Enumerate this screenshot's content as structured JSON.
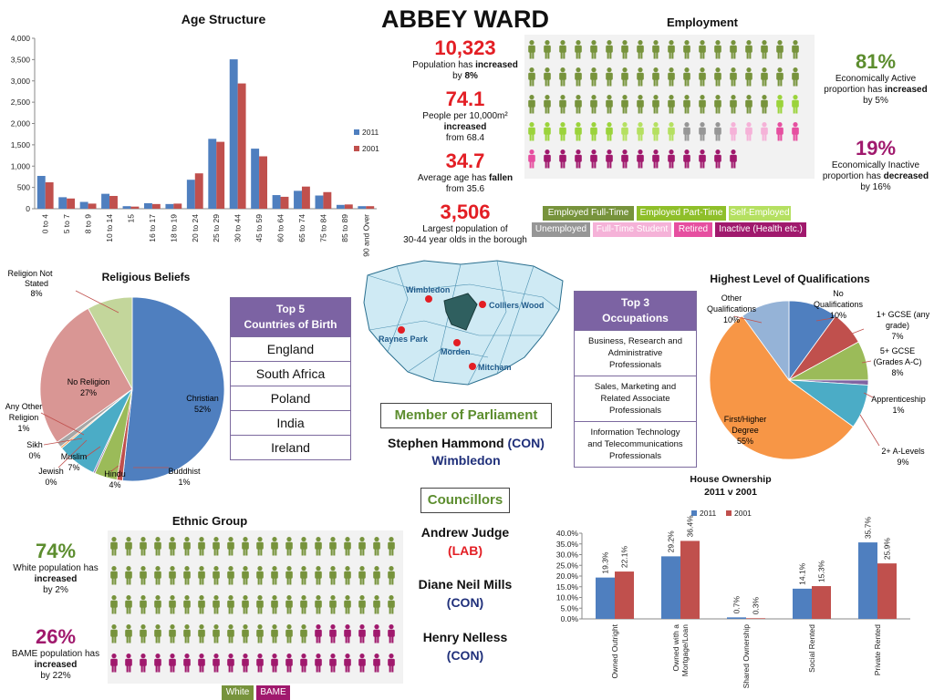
{
  "page": {
    "title": "ABBEY WARD"
  },
  "colors": {
    "blue_2011": "#4f7fbf",
    "red_2001": "#c0504d",
    "green_dark": "#77933c",
    "green_light": "#9bd33b",
    "grey": "#969696",
    "pink_light": "#f5b2d8",
    "pink": "#e64fa0",
    "purple": "#a0196d",
    "red_accent": "#e31e24",
    "table_purple": "#7c63a3"
  },
  "stats": [
    {
      "value": "10,323",
      "line1_pre": "Population has ",
      "line1_bold": "increased",
      "line2_pre": "by ",
      "line2_bold": "8%"
    },
    {
      "value": "74.1",
      "line1": "People per 10,000m²",
      "line2_bold": "increased",
      "line3": "from 68.4"
    },
    {
      "value": "34.7",
      "line1_pre": "Average age has ",
      "line1_bold": "fallen",
      "line2": "from 35.6"
    },
    {
      "value": "3,506",
      "line1": "Largest population of",
      "line2": "30-44 year olds in the borough"
    }
  ],
  "age_chart": {
    "title": "Age Structure",
    "categories": [
      "0 to 4",
      "5 to 7",
      "8 to 9",
      "10 to 14",
      "15",
      "16 to 17",
      "18 to 19",
      "20 to 24",
      "25 to 29",
      "30 to 44",
      "45 to 59",
      "60 to 64",
      "65 to 74",
      "75 to 84",
      "85 to 89",
      "90 and Over"
    ],
    "yticks": [
      "0",
      "500",
      "1,000",
      "1,500",
      "2,000",
      "2,500",
      "3,000",
      "3,500",
      "4,000"
    ],
    "legend": [
      "2011",
      "2001"
    ]
  },
  "chart_data": [
    {
      "type": "bar",
      "title": "Age Structure",
      "categories": [
        "0 to 4",
        "5 to 7",
        "8 to 9",
        "10 to 14",
        "15",
        "16 to 17",
        "18 to 19",
        "20 to 24",
        "25 to 29",
        "30 to 44",
        "45 to 59",
        "60 to 64",
        "65 to 74",
        "75 to 84",
        "85 to 89",
        "90 and Over"
      ],
      "series": [
        {
          "name": "2011",
          "values": [
            770,
            270,
            160,
            350,
            60,
            130,
            110,
            680,
            1640,
            3506,
            1410,
            320,
            420,
            310,
            90,
            60
          ]
        },
        {
          "name": "2001",
          "values": [
            620,
            240,
            120,
            300,
            50,
            110,
            120,
            830,
            1570,
            2940,
            1230,
            280,
            520,
            390,
            100,
            60
          ]
        }
      ],
      "ylim": [
        0,
        4000
      ],
      "legend_position": "right"
    },
    {
      "type": "pie",
      "title": "Religious Beliefs",
      "slices": [
        {
          "label": "Christian",
          "value": 52,
          "pct": "52%"
        },
        {
          "label": "Buddhist",
          "value": 1,
          "pct": "1%"
        },
        {
          "label": "Hindu",
          "value": 4,
          "pct": "4%"
        },
        {
          "label": "Jewish",
          "value": 0.3,
          "pct": "0%"
        },
        {
          "label": "Muslim",
          "value": 7,
          "pct": "7%"
        },
        {
          "label": "Sikh",
          "value": 0.3,
          "pct": "0%"
        },
        {
          "label": "Any Other Religion",
          "value": 1,
          "pct": "1%"
        },
        {
          "label": "No Religion",
          "value": 27,
          "pct": "27%"
        },
        {
          "label": "Religion Not Stated",
          "value": 8,
          "pct": "8%"
        }
      ]
    },
    {
      "type": "pie",
      "title": "Highest Level of Qualifications",
      "slices": [
        {
          "label": "No Qualifications",
          "value": 10,
          "pct": "10%"
        },
        {
          "label": "1+ GCSE (any grade)",
          "value": 7,
          "pct": "7%"
        },
        {
          "label": "5+ GCSE (Grades A-C)",
          "value": 8,
          "pct": "8%"
        },
        {
          "label": "Apprenticeship",
          "value": 1,
          "pct": "1%"
        },
        {
          "label": "2+ A-Levels",
          "value": 9,
          "pct": "9%"
        },
        {
          "label": "First/Higher Degree",
          "value": 55,
          "pct": "55%"
        },
        {
          "label": "Other Qualifications",
          "value": 10,
          "pct": "10%"
        }
      ]
    },
    {
      "type": "bar",
      "title": "House Ownership 2011 v 2001",
      "categories": [
        "Owned Outright",
        "Owned with a Mortgage/Loan",
        "Shared Ownership",
        "Social Rented",
        "Private Rented"
      ],
      "series": [
        {
          "name": "2011",
          "values": [
            19.3,
            29.2,
            0.7,
            14.1,
            35.7
          ],
          "labels": [
            "19.3%",
            "29.2%",
            "0.7%",
            "14.1%",
            "35.7%"
          ]
        },
        {
          "name": "2001",
          "values": [
            22.1,
            36.4,
            0.3,
            15.3,
            25.9
          ],
          "labels": [
            "22.1%",
            "36.4%",
            "0.3%",
            "15.3%",
            "25.9%"
          ]
        }
      ],
      "ylim": [
        0,
        40
      ],
      "legend_position": "top"
    }
  ],
  "religion": {
    "title": "Religious Beliefs",
    "labels": {
      "not_stated_1": "Religion Not",
      "not_stated_2": "Stated",
      "not_stated_pct": "8%",
      "christian": "Christian",
      "christian_pct": "52%",
      "no_religion": "No Religion",
      "no_religion_pct": "27%",
      "any_other_1": "Any Other",
      "any_other_2": "Religion",
      "any_other_pct": "1%",
      "sikh": "Sikh",
      "sikh_pct": "0%",
      "muslim": "Muslim",
      "muslim_pct": "7%",
      "jewish": "Jewish",
      "jewish_pct": "0%",
      "hindu": "Hindu",
      "hindu_pct": "4%",
      "buddhist": "Buddhist",
      "buddhist_pct": "1%"
    }
  },
  "countries": {
    "title_1": "Top 5",
    "title_2": "Countries of Birth",
    "items": [
      "England",
      "South Africa",
      "Poland",
      "India",
      "Ireland"
    ]
  },
  "map": {
    "labels": [
      "Wimbledon",
      "Colliers Wood",
      "Raynes Park",
      "Morden",
      "Mitcham"
    ]
  },
  "mp": {
    "heading": "Member of Parliament",
    "name": "Stephen Hammond",
    "party": "(CON)",
    "seat": "Wimbledon"
  },
  "councillors": {
    "heading": "Councillors",
    "items": [
      {
        "name": "Andrew Judge",
        "party": "(LAB)"
      },
      {
        "name": "Diane Neil Mills",
        "party": "(CON)"
      },
      {
        "name": "Henry Nelless",
        "party": "(CON)"
      }
    ]
  },
  "occupations": {
    "title_1": "Top 3",
    "title_2": "Occupations",
    "items": [
      [
        "Business, Research and",
        "Administrative",
        "Professionals"
      ],
      [
        "Sales, Marketing and",
        "Related Associate",
        "Professionals"
      ],
      [
        "Information Technology",
        "and Telecommunications",
        "Professionals"
      ]
    ]
  },
  "employment": {
    "title": "Employment",
    "active_pct": "81%",
    "active_1": "Economically Active",
    "active_2_pre": "proportion has ",
    "active_2_bold": "increased",
    "active_3": "by 5%",
    "inactive_pct": "19%",
    "inactive_1": "Economically Inactive",
    "inactive_2_pre": "proportion has ",
    "inactive_2_bold": "decreased",
    "inactive_3": "by 16%",
    "legend": [
      "Employed Full-Time",
      "Employed Part-Time",
      "Self-Employed",
      "Unemployed",
      "Full-Time Student",
      "Retired",
      "Inactive (Health etc.)"
    ],
    "counts": {
      "full_time": 52,
      "part_time": 8,
      "self_employed": 4,
      "unemployed": 3,
      "student": 3,
      "retired": 3,
      "inactive": 13
    }
  },
  "qualifications": {
    "title": "Highest Level of Qualifications",
    "labels": {
      "other_1": "Other",
      "other_2": "Qualifications",
      "other_pct": "10%",
      "noq_1": "No",
      "noq_2": "Qualifications",
      "noq_pct": "10%",
      "gcse1_1": "1+ GCSE (any",
      "gcse1_2": "grade)",
      "gcse1_pct": "7%",
      "gcse5_1": "5+ GCSE",
      "gcse5_2": "(Grades A-C)",
      "gcse5_pct": "8%",
      "app_1": "Apprenticeship",
      "app_pct": "1%",
      "alevel_1": "2+ A-Levels",
      "alevel_pct": "9%",
      "degree_1": "First/Higher",
      "degree_2": "Degree",
      "degree_pct": "55%"
    }
  },
  "house": {
    "title_1": "House Ownership",
    "title_2": "2011 v 2001",
    "yticks": [
      "0.0%",
      "5.0%",
      "10.0%",
      "15.0%",
      "20.0%",
      "25.0%",
      "30.0%",
      "35.0%",
      "40.0%"
    ],
    "legend": [
      "2011",
      "2001"
    ],
    "cat_lines": [
      [
        "Owned Outright"
      ],
      [
        "Owned with a",
        "Mortgage/Loan"
      ],
      [
        "Shared Ownership"
      ],
      [
        "Social Rented"
      ],
      [
        "Private Rented"
      ]
    ]
  },
  "ethnic": {
    "title": "Ethnic Group",
    "white_pct": "74%",
    "white_1": "White population has",
    "white_2_bold": "increased",
    "white_3": "by 2%",
    "bame_pct": "26%",
    "bame_1": "BAME population has",
    "bame_2_bold": "increased",
    "bame_3": "by 22%",
    "legend": [
      "White",
      "BAME"
    ],
    "counts": {
      "white": 74,
      "bame": 26
    }
  }
}
